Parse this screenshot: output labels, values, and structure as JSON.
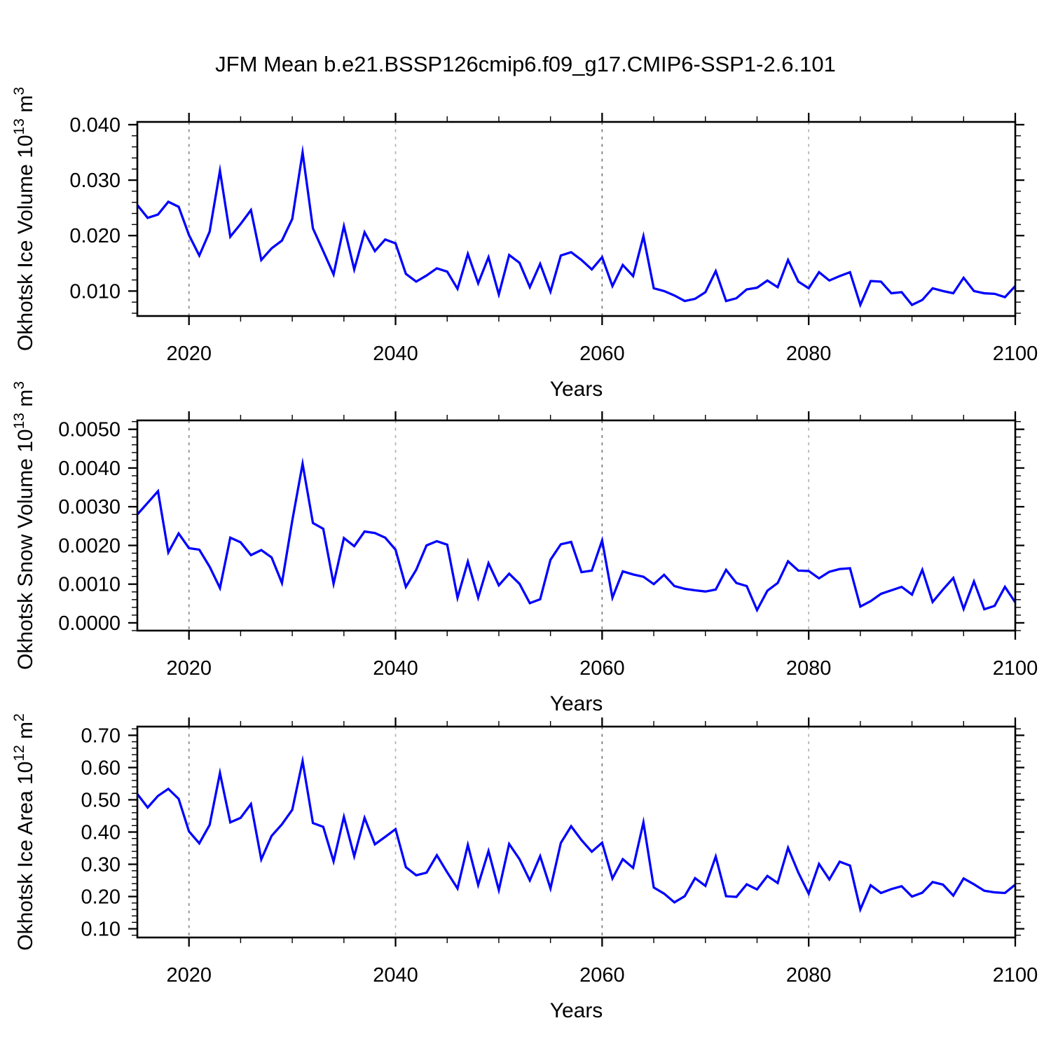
{
  "title": "JFM Mean b.e21.BSSP126cmip6.f09_g17.CMIP6-SSP1-2.6.101",
  "colors": {
    "line": "#0000FF",
    "axis": "#000000",
    "grid_colors": [
      "#8a8a8a",
      "#b2b2b2",
      "#787878",
      "#b2b2b2"
    ]
  },
  "chart_data": [
    {
      "type": "line",
      "name": "okhotsk-ice-volume",
      "ylabel": "Okhotsk Ice Volume 10^13 m^3",
      "ylabel_parts": [
        {
          "text": "Okhotsk Ice Volume 10"
        },
        {
          "sup": "13"
        },
        {
          "text": " m"
        },
        {
          "sup": "3"
        }
      ],
      "xlabel": "Years",
      "x_start": 2015,
      "x_end": 2100,
      "xlim": [
        2015,
        2100
      ],
      "ylim": [
        0.0055,
        0.0405
      ],
      "yticks": [
        0.01,
        0.02,
        0.03,
        0.04
      ],
      "ytick_labels": [
        "0.010",
        "0.020",
        "0.030",
        "0.040"
      ],
      "y_minor_step": 0.002,
      "xticks": [
        2020,
        2040,
        2060,
        2080,
        2100
      ],
      "xtick_labels": [
        "2020",
        "2040",
        "2060",
        "2080",
        "2100"
      ],
      "x_minor_step": 5,
      "gridline_x": [
        2020,
        2040,
        2060,
        2080
      ],
      "values": [
        0.0255,
        0.0232,
        0.0238,
        0.0261,
        0.0252,
        0.0201,
        0.0164,
        0.0207,
        0.0317,
        0.0198,
        0.0221,
        0.0246,
        0.0156,
        0.0177,
        0.0191,
        0.023,
        0.035,
        0.0213,
        0.0172,
        0.013,
        0.0217,
        0.0139,
        0.0206,
        0.0172,
        0.0193,
        0.0186,
        0.0131,
        0.0117,
        0.0128,
        0.0141,
        0.0135,
        0.0104,
        0.0167,
        0.0114,
        0.0161,
        0.0094,
        0.0165,
        0.0151,
        0.0107,
        0.0149,
        0.0099,
        0.0164,
        0.017,
        0.0156,
        0.0139,
        0.0161,
        0.0109,
        0.0147,
        0.0127,
        0.0199,
        0.0105,
        0.01,
        0.0092,
        0.0082,
        0.0086,
        0.0098,
        0.0136,
        0.0082,
        0.0087,
        0.0103,
        0.0106,
        0.0119,
        0.0107,
        0.0156,
        0.0117,
        0.0105,
        0.0134,
        0.0119,
        0.0127,
        0.0134,
        0.0075,
        0.0118,
        0.0117,
        0.0096,
        0.0098,
        0.0075,
        0.0084,
        0.0105,
        0.01,
        0.0096,
        0.0124,
        0.01,
        0.0096,
        0.0095,
        0.0089,
        0.0109
      ]
    },
    {
      "type": "line",
      "name": "okhotsk-snow-volume",
      "ylabel": "Okhotsk Snow Volume 10^13 m^3",
      "ylabel_parts": [
        {
          "text": "Okhotsk Snow Volume 10"
        },
        {
          "sup": "13"
        },
        {
          "text": " m"
        },
        {
          "sup": "3"
        }
      ],
      "xlabel": "Years",
      "x_start": 2015,
      "x_end": 2100,
      "xlim": [
        2015,
        2100
      ],
      "ylim": [
        -0.0002,
        0.00523
      ],
      "yticks": [
        0.0,
        0.001,
        0.002,
        0.003,
        0.004,
        0.005
      ],
      "ytick_labels": [
        "0.0000",
        "0.0010",
        "0.0020",
        "0.0030",
        "0.0040",
        "0.0050"
      ],
      "y_minor_step": 0.0002,
      "xticks": [
        2020,
        2040,
        2060,
        2080,
        2100
      ],
      "xtick_labels": [
        "2020",
        "2040",
        "2060",
        "2080",
        "2100"
      ],
      "x_minor_step": 5,
      "gridline_x": [
        2020,
        2040,
        2060,
        2080
      ],
      "values": [
        0.0028,
        0.0031,
        0.0034,
        0.00182,
        0.00231,
        0.00193,
        0.00189,
        0.00145,
        0.0009,
        0.0022,
        0.00208,
        0.00175,
        0.00188,
        0.00169,
        0.00103,
        0.00264,
        0.00411,
        0.00258,
        0.00243,
        0.00101,
        0.00219,
        0.00198,
        0.00236,
        0.00232,
        0.0022,
        0.00189,
        0.00093,
        0.00137,
        0.002,
        0.00211,
        0.00202,
        0.00065,
        0.00158,
        0.00065,
        0.00154,
        0.00097,
        0.00127,
        0.00101,
        0.00051,
        0.00061,
        0.00163,
        0.00203,
        0.00209,
        0.00131,
        0.00135,
        0.00213,
        0.00065,
        0.00133,
        0.00125,
        0.00119,
        0.001,
        0.00124,
        0.00095,
        0.00088,
        0.00084,
        0.00081,
        0.00086,
        0.00137,
        0.00103,
        0.00095,
        0.00033,
        0.00083,
        0.00103,
        0.00159,
        0.00135,
        0.00134,
        0.00115,
        0.00132,
        0.00139,
        0.00141,
        0.00042,
        0.00056,
        0.00075,
        0.00084,
        0.00093,
        0.00073,
        0.00137,
        0.00054,
        0.00086,
        0.00116,
        0.00036,
        0.00107,
        0.00035,
        0.00044,
        0.00093,
        0.00053
      ]
    },
    {
      "type": "line",
      "name": "okhotsk-ice-area",
      "ylabel": "Okhotsk Ice Area 10^12 m^2",
      "ylabel_parts": [
        {
          "text": "Okhotsk Ice Area 10"
        },
        {
          "sup": "12"
        },
        {
          "text": " m"
        },
        {
          "sup": "2"
        }
      ],
      "xlabel": "Years",
      "x_start": 2015,
      "x_end": 2100,
      "xlim": [
        2015,
        2100
      ],
      "ylim": [
        0.073,
        0.727
      ],
      "yticks": [
        0.1,
        0.2,
        0.3,
        0.4,
        0.5,
        0.6,
        0.7
      ],
      "ytick_labels": [
        "0.10",
        "0.20",
        "0.30",
        "0.40",
        "0.50",
        "0.60",
        "0.70"
      ],
      "y_minor_step": 0.02,
      "xticks": [
        2020,
        2040,
        2060,
        2080,
        2100
      ],
      "xtick_labels": [
        "2020",
        "2040",
        "2060",
        "2080",
        "2100"
      ],
      "x_minor_step": 5,
      "gridline_x": [
        2020,
        2040,
        2060,
        2080
      ],
      "values": [
        0.518,
        0.476,
        0.512,
        0.534,
        0.503,
        0.402,
        0.365,
        0.422,
        0.583,
        0.43,
        0.444,
        0.487,
        0.315,
        0.388,
        0.424,
        0.469,
        0.62,
        0.428,
        0.416,
        0.309,
        0.447,
        0.325,
        0.444,
        0.362,
        0.385,
        0.409,
        0.291,
        0.266,
        0.274,
        0.328,
        0.275,
        0.225,
        0.36,
        0.236,
        0.341,
        0.22,
        0.363,
        0.316,
        0.25,
        0.325,
        0.225,
        0.366,
        0.418,
        0.375,
        0.339,
        0.367,
        0.256,
        0.316,
        0.289,
        0.43,
        0.228,
        0.209,
        0.182,
        0.201,
        0.257,
        0.233,
        0.324,
        0.201,
        0.199,
        0.238,
        0.222,
        0.264,
        0.242,
        0.351,
        0.274,
        0.209,
        0.301,
        0.253,
        0.308,
        0.296,
        0.16,
        0.235,
        0.211,
        0.223,
        0.232,
        0.2,
        0.212,
        0.245,
        0.237,
        0.203,
        0.256,
        0.238,
        0.218,
        0.213,
        0.211,
        0.237
      ]
    }
  ]
}
